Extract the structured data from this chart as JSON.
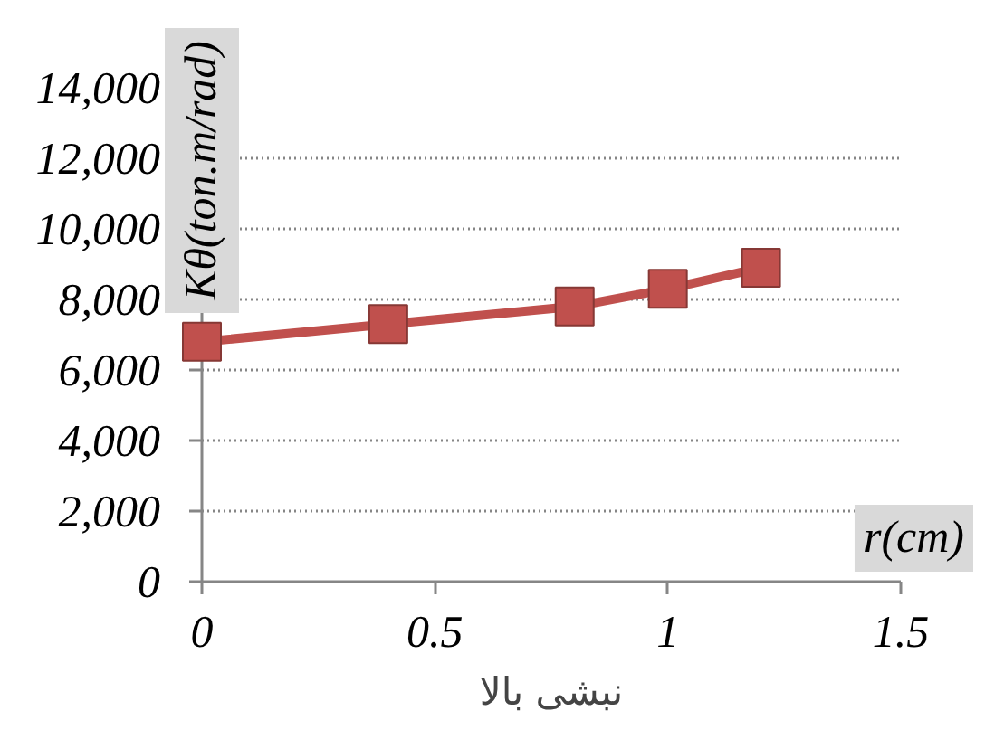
{
  "chart_data": {
    "type": "line",
    "xlabel": "r(cm)",
    "ylabel": "Kθ(ton.m/rad)",
    "annotations": [
      "نبشی بالا"
    ],
    "x": [
      0,
      0.4,
      0.8,
      1,
      1.2
    ],
    "series": [
      {
        "color": "#c0504d",
        "values": [
          6800,
          7300,
          7800,
          8300,
          8900
        ]
      }
    ],
    "xlim": [
      0,
      1.5
    ],
    "ylim": [
      0,
      14000
    ],
    "xticks": [
      0,
      0.5,
      1,
      1.5
    ],
    "yticks": [
      0,
      {
        "value": 2000,
        "label": "2,000"
      },
      {
        "value": 4000,
        "label": "4,000"
      },
      {
        "value": 6000,
        "label": "6,000"
      },
      {
        "value": 8000,
        "label": "8,000"
      },
      {
        "value": 10000,
        "label": "10,000"
      },
      {
        "value": 12000,
        "label": "12,000"
      },
      {
        "value": 14000,
        "label": "14,000"
      }
    ],
    "grid": "y",
    "marker": "square",
    "line_style": "solid"
  }
}
